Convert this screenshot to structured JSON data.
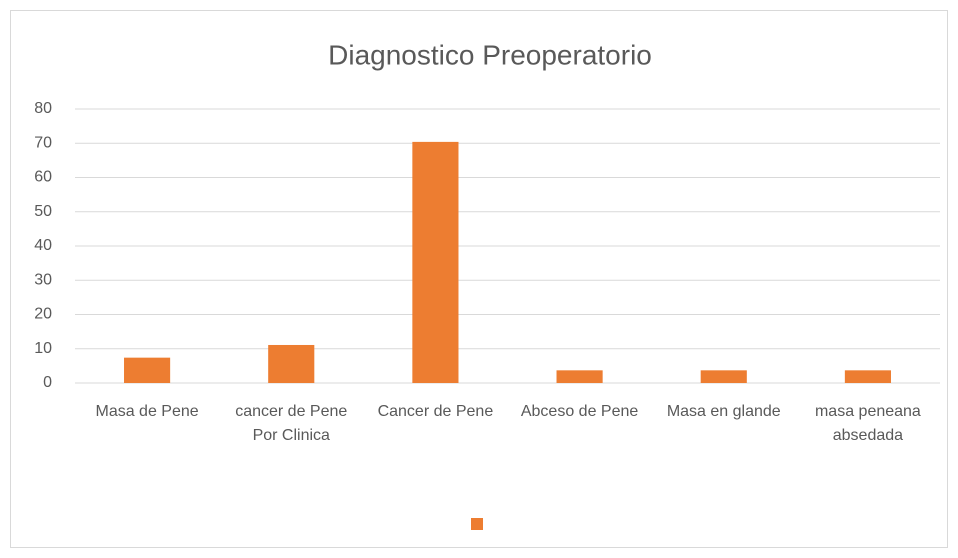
{
  "chart_data": {
    "type": "bar",
    "title": "Diagnostico Preoperatorio",
    "categories": [
      "Masa de Pene",
      "cancer de Pene Por Clinica",
      "Cancer de Pene",
      "Abceso de Pene",
      "Masa en glande",
      "masa peneana absedada"
    ],
    "values": [
      7.4,
      11.1,
      70.4,
      3.7,
      3.7,
      3.7
    ],
    "color": "#ed7d31",
    "ylim": [
      0,
      80
    ],
    "yticks": [
      0,
      10,
      20,
      30,
      40,
      50,
      60,
      70,
      80
    ],
    "grid": true,
    "legend": "bottom"
  }
}
